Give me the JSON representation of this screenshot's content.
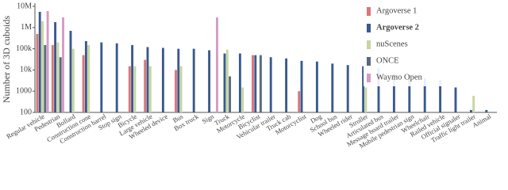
{
  "chart_data": {
    "type": "bar",
    "ylabel": "Number of 3D cuboids",
    "log_scale": true,
    "ylim": [
      100,
      10000000
    ],
    "yticks": [
      100,
      1000,
      {
        "value": 10000,
        "label": "10k"
      },
      {
        "value": 100000,
        "label": "100k"
      },
      {
        "value": 1000000,
        "label": "1M"
      },
      {
        "value": 10000000,
        "label": "10M"
      }
    ],
    "categories": [
      "Regular vehicle",
      "Pedestrian",
      "Bollard",
      "Construction cone",
      "Construction barrel",
      "Stop sign",
      "Bicycle",
      "Large vehicle",
      "Wheeled device",
      "Bus",
      "Box truck",
      "Sign",
      "Truck",
      "Motorcycle",
      "Bicyclist",
      "Vehicular trailer",
      "Truck cab",
      "Motorcyclist",
      "Dog",
      "School bus",
      "Wheeled rider",
      "Stroller",
      "Articulated bus",
      "Message board trailer",
      "Mobile pedestrian sign",
      "Wheelchair",
      "Railed vehicle",
      "Official signaler",
      "Traffic light trailer",
      "Animal"
    ],
    "legend": "upper right",
    "series": [
      {
        "name": "Argoverse 1",
        "color": "#d9777a",
        "values": [
          500000,
          150000,
          null,
          50000,
          null,
          null,
          15000,
          30000,
          null,
          10000,
          null,
          null,
          null,
          null,
          50000,
          null,
          null,
          1000,
          null,
          null,
          null,
          null,
          null,
          null,
          null,
          null,
          null,
          null,
          null,
          null
        ]
      },
      {
        "name": "Argoverse 2",
        "color": "#3b5a8c",
        "values": [
          5500000,
          1800000,
          700000,
          230000,
          200000,
          180000,
          150000,
          120000,
          110000,
          100000,
          100000,
          85000,
          60000,
          60000,
          50000,
          40000,
          35000,
          27000,
          25000,
          20000,
          17000,
          15000,
          12000,
          7000,
          6000,
          4000,
          3500,
          1500,
          130,
          130
        ]
      },
      {
        "name": "nuScenes",
        "color": "#c5d6a0",
        "values": [
          2000000,
          200000,
          100000,
          150000,
          null,
          null,
          15000,
          15000,
          null,
          15000,
          null,
          null,
          90000,
          1500,
          null,
          null,
          null,
          null,
          null,
          null,
          null,
          1500,
          null,
          null,
          null,
          null,
          null,
          null,
          600,
          null
        ]
      },
      {
        "name": "ONCE",
        "color": "#596a7e",
        "values": [
          150000,
          40000,
          null,
          null,
          null,
          null,
          null,
          null,
          null,
          null,
          null,
          null,
          5000,
          null,
          50000,
          null,
          null,
          null,
          null,
          null,
          null,
          null,
          null,
          null,
          null,
          null,
          null,
          null,
          null,
          null
        ]
      },
      {
        "name": "Waymo Open",
        "color": "#d49cc4",
        "values": [
          6000000,
          3000000,
          null,
          null,
          null,
          null,
          null,
          null,
          null,
          null,
          null,
          3000000,
          null,
          null,
          null,
          null,
          null,
          null,
          null,
          null,
          null,
          null,
          null,
          null,
          null,
          null,
          null,
          null,
          null,
          null
        ]
      }
    ]
  }
}
